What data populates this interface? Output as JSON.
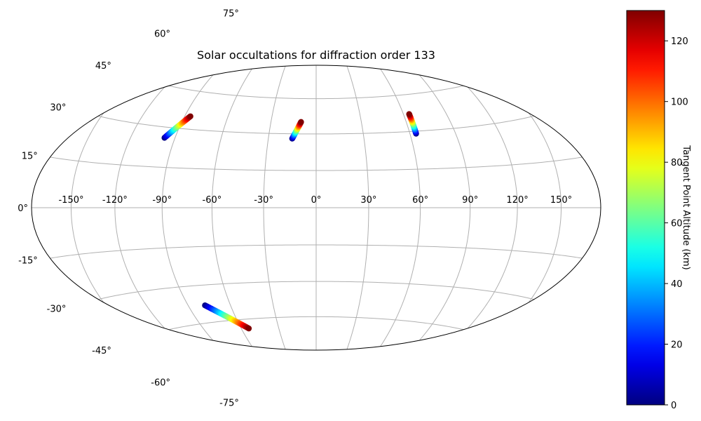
{
  "chart_data": {
    "type": "scatter",
    "projection": "hammer",
    "title": "Solar occultations for diffraction order 133",
    "grid": true,
    "lon_ticks": [
      -150,
      -120,
      -90,
      -60,
      -30,
      0,
      30,
      60,
      90,
      120,
      150
    ],
    "lon_tick_labels": [
      "-150°",
      "-120°",
      "-90°",
      "-60°",
      "-30°",
      "0°",
      "30°",
      "60°",
      "90°",
      "120°",
      "150°"
    ],
    "lat_ticks": [
      75,
      60,
      45,
      30,
      15,
      0,
      -15,
      -30,
      -45,
      -60,
      -75
    ],
    "lat_tick_labels": [
      "75°",
      "60°",
      "45°",
      "30°",
      "15°",
      "0°",
      "-15°",
      "-30°",
      "-45°",
      "-60°",
      "-75°"
    ],
    "colorbar": {
      "label": "Tangent Point Altitude (km)",
      "range": [
        0,
        130
      ],
      "ticks": [
        0,
        20,
        40,
        60,
        80,
        100,
        120
      ],
      "tick_labels": [
        "0",
        "20",
        "40",
        "60",
        "80",
        "100",
        "120"
      ],
      "colormap": "jet"
    },
    "series": [
      {
        "lon_start": -97,
        "lat_start": 26,
        "lon_end": -86,
        "lat_end": 35,
        "alt_start": 0,
        "alt_end": 130
      },
      {
        "lon_start": -15,
        "lat_start": 28,
        "lon_end": -10,
        "lat_end": 35,
        "alt_start": 0,
        "alt_end": 130
      },
      {
        "lon_start": 64,
        "lat_start": 29,
        "lon_end": 64,
        "lat_end": 37,
        "alt_start": 0,
        "alt_end": 130
      },
      {
        "lon_start": -78,
        "lat_start": -38,
        "lon_end": -54,
        "lat_end": -49,
        "alt_start": 0,
        "alt_end": 130
      }
    ]
  }
}
